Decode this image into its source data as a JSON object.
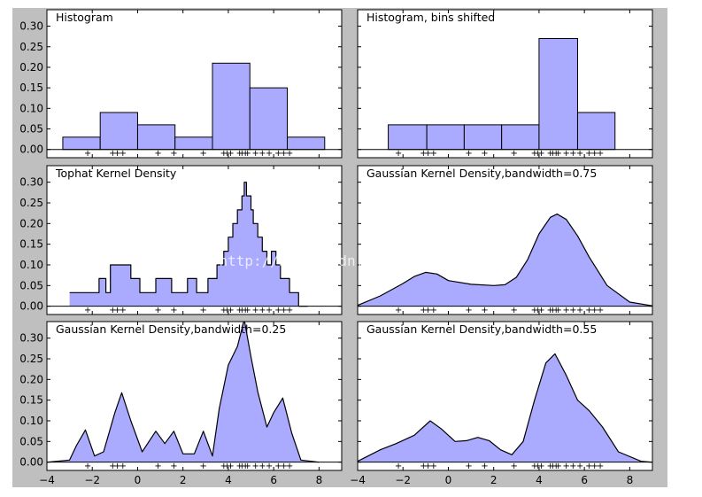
{
  "watermark": "http://blog.csdn.net/pipisorry",
  "colors": {
    "background": "#bfbfbf",
    "fill": "#aaaaff",
    "line": "#000000"
  },
  "x_ticks": [
    "-4",
    "-2",
    "0",
    "2",
    "4",
    "6",
    "8"
  ],
  "y_ticks": [
    "0.00",
    "0.05",
    "0.10",
    "0.15",
    "0.20",
    "0.25",
    "0.30"
  ],
  "chart_data": [
    {
      "type": "bar",
      "title": "Histogram",
      "xlim": [
        -4,
        9
      ],
      "ylim": [
        -0.02,
        0.34
      ],
      "grid": false,
      "bins": [
        {
          "x0": -3.3,
          "x1": -1.65,
          "y": 0.03
        },
        {
          "x0": -1.65,
          "x1": 0.0,
          "y": 0.09
        },
        {
          "x0": 0.0,
          "x1": 1.65,
          "y": 0.06
        },
        {
          "x0": 1.65,
          "x1": 3.3,
          "y": 0.03
        },
        {
          "x0": 3.3,
          "x1": 4.95,
          "y": 0.21
        },
        {
          "x0": 4.95,
          "x1": 6.6,
          "y": 0.15
        },
        {
          "x0": 6.6,
          "x1": 8.25,
          "y": 0.03
        }
      ]
    },
    {
      "type": "bar",
      "title": "Histogram, bins shifted",
      "xlim": [
        -4,
        9
      ],
      "ylim": [
        -0.02,
        0.34
      ],
      "grid": false,
      "bins": [
        {
          "x0": -2.65,
          "x1": -0.95,
          "y": 0.06
        },
        {
          "x0": -0.95,
          "x1": 0.7,
          "y": 0.06
        },
        {
          "x0": 0.7,
          "x1": 2.35,
          "y": 0.06
        },
        {
          "x0": 2.35,
          "x1": 4.0,
          "y": 0.06
        },
        {
          "x0": 4.0,
          "x1": 5.7,
          "y": 0.27
        },
        {
          "x0": 5.7,
          "x1": 7.35,
          "y": 0.09
        }
      ]
    },
    {
      "type": "area",
      "title": "Tophat Kernel Density",
      "xlim": [
        -4,
        9
      ],
      "ylim": [
        -0.02,
        0.34
      ],
      "grid": false,
      "x": [
        -3.0,
        -1.7,
        -1.7,
        -1.4,
        -1.4,
        -1.2,
        -1.2,
        -0.3,
        -0.3,
        0.1,
        0.1,
        0.8,
        0.8,
        1.5,
        1.5,
        2.2,
        2.2,
        2.6,
        2.6,
        3.1,
        3.1,
        3.5,
        3.5,
        3.8,
        3.8,
        4.0,
        4.0,
        4.2,
        4.2,
        4.4,
        4.4,
        4.6,
        4.6,
        4.7,
        4.7,
        4.8,
        4.8,
        5.0,
        5.0,
        5.1,
        5.1,
        5.3,
        5.3,
        5.5,
        5.5,
        5.7,
        5.7,
        5.9,
        5.9,
        6.1,
        6.1,
        6.3,
        6.3,
        6.7,
        6.7,
        7.1,
        7.1,
        7.5
      ],
      "y": [
        0.033,
        0.033,
        0.067,
        0.067,
        0.033,
        0.033,
        0.1,
        0.1,
        0.067,
        0.067,
        0.033,
        0.033,
        0.067,
        0.067,
        0.033,
        0.033,
        0.067,
        0.067,
        0.033,
        0.033,
        0.067,
        0.067,
        0.1,
        0.1,
        0.133,
        0.133,
        0.167,
        0.167,
        0.2,
        0.2,
        0.233,
        0.233,
        0.267,
        0.267,
        0.3,
        0.3,
        0.267,
        0.267,
        0.233,
        0.233,
        0.2,
        0.2,
        0.167,
        0.167,
        0.133,
        0.133,
        0.1,
        0.1,
        0.133,
        0.133,
        0.1,
        0.1,
        0.067,
        0.067,
        0.033,
        0.033,
        0.0,
        0.0
      ]
    },
    {
      "type": "area",
      "title": "Gaussian Kernel Density,bandwidth=0.75",
      "xlim": [
        -4,
        9
      ],
      "ylim": [
        -0.02,
        0.34
      ],
      "grid": false,
      "x": [
        -4.0,
        -3.0,
        -2.0,
        -1.5,
        -1.0,
        -0.5,
        0.0,
        1.0,
        2.0,
        2.5,
        3.0,
        3.5,
        4.0,
        4.5,
        4.8,
        5.2,
        5.7,
        6.2,
        7.0,
        8.0,
        9.0
      ],
      "y": [
        0.002,
        0.025,
        0.055,
        0.072,
        0.082,
        0.078,
        0.062,
        0.053,
        0.05,
        0.052,
        0.07,
        0.113,
        0.175,
        0.215,
        0.223,
        0.21,
        0.17,
        0.12,
        0.05,
        0.01,
        0.001
      ]
    },
    {
      "type": "area",
      "title": "Gaussian Kernel Density,bandwidth=0.25",
      "xlim": [
        -4,
        9
      ],
      "ylim": [
        -0.02,
        0.34
      ],
      "grid": false,
      "x": [
        -4.0,
        -3.0,
        -2.7,
        -2.3,
        -1.9,
        -1.5,
        -1.0,
        -0.7,
        -0.3,
        0.2,
        0.8,
        1.2,
        1.6,
        2.0,
        2.5,
        2.9,
        3.3,
        3.6,
        4.0,
        4.4,
        4.7,
        5.0,
        5.3,
        5.7,
        6.0,
        6.4,
        6.8,
        7.2,
        8.0
      ],
      "y": [
        0.0,
        0.005,
        0.04,
        0.078,
        0.015,
        0.025,
        0.12,
        0.168,
        0.1,
        0.025,
        0.075,
        0.045,
        0.075,
        0.02,
        0.02,
        0.075,
        0.015,
        0.13,
        0.235,
        0.28,
        0.345,
        0.255,
        0.17,
        0.085,
        0.12,
        0.155,
        0.07,
        0.005,
        0.0
      ]
    },
    {
      "type": "area",
      "title": "Gaussian Kernel Density,bandwidth=0.55",
      "xlim": [
        -4,
        9
      ],
      "ylim": [
        -0.02,
        0.34
      ],
      "grid": false,
      "x": [
        -4.0,
        -3.0,
        -2.3,
        -1.5,
        -0.8,
        -0.3,
        0.3,
        0.8,
        1.3,
        1.8,
        2.3,
        2.8,
        3.3,
        3.8,
        4.3,
        4.7,
        5.2,
        5.7,
        6.2,
        6.8,
        7.5,
        8.5,
        9.0
      ],
      "y": [
        0.002,
        0.03,
        0.045,
        0.065,
        0.1,
        0.08,
        0.05,
        0.052,
        0.06,
        0.052,
        0.03,
        0.018,
        0.05,
        0.15,
        0.24,
        0.262,
        0.21,
        0.15,
        0.125,
        0.085,
        0.025,
        0.002,
        0.0
      ]
    }
  ],
  "samples_x": [
    -2.2,
    -1.1,
    -0.9,
    -0.65,
    0.9,
    1.6,
    2.9,
    3.8,
    3.95,
    4.1,
    4.5,
    4.6,
    4.75,
    4.85,
    5.2,
    5.5,
    5.8,
    6.2,
    6.45,
    6.7
  ]
}
